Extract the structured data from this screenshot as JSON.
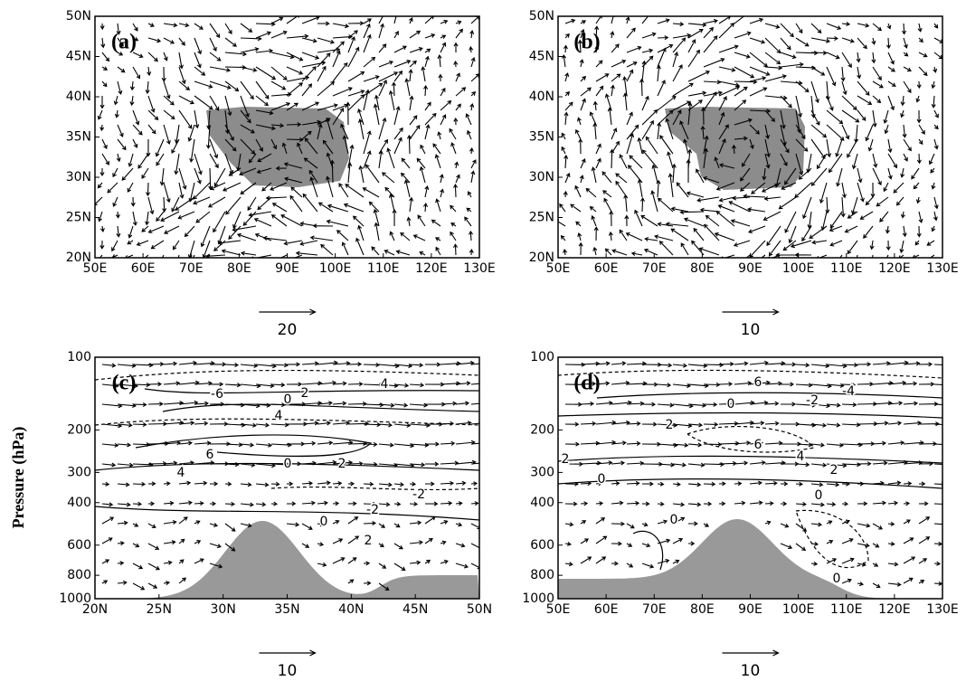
{
  "chart_data": [
    {
      "type": "vector",
      "panel_label": "(a)",
      "xlim": [
        50,
        130
      ],
      "ylim": [
        20,
        50
      ],
      "xticks": [
        {
          "value": 50,
          "label": "50E"
        },
        {
          "value": 60,
          "label": "60E"
        },
        {
          "value": 70,
          "label": "70E"
        },
        {
          "value": 80,
          "label": "80E"
        },
        {
          "value": 90,
          "label": "90E"
        },
        {
          "value": 100,
          "label": "100E"
        },
        {
          "value": 110,
          "label": "110E"
        },
        {
          "value": 120,
          "label": "120E"
        },
        {
          "value": 130,
          "label": "130E"
        }
      ],
      "yticks": [
        {
          "value": 20,
          "label": "20N"
        },
        {
          "value": 25,
          "label": "25N"
        },
        {
          "value": 30,
          "label": "30N"
        },
        {
          "value": 35,
          "label": "35N"
        },
        {
          "value": 40,
          "label": "40N"
        },
        {
          "value": 45,
          "label": "45N"
        },
        {
          "value": 50,
          "label": "50N"
        }
      ],
      "reference_vector": 20
    },
    {
      "type": "vector",
      "panel_label": "(b)",
      "xlim": [
        50,
        130
      ],
      "ylim": [
        20,
        50
      ],
      "xticks": [
        {
          "value": 50,
          "label": "50E"
        },
        {
          "value": 60,
          "label": "60E"
        },
        {
          "value": 70,
          "label": "70E"
        },
        {
          "value": 80,
          "label": "80E"
        },
        {
          "value": 90,
          "label": "90E"
        },
        {
          "value": 100,
          "label": "100E"
        },
        {
          "value": 110,
          "label": "110E"
        },
        {
          "value": 120,
          "label": "120E"
        },
        {
          "value": 130,
          "label": "130E"
        }
      ],
      "yticks": [
        {
          "value": 20,
          "label": "20N"
        },
        {
          "value": 25,
          "label": "25N"
        },
        {
          "value": 30,
          "label": "30N"
        },
        {
          "value": 35,
          "label": "35N"
        },
        {
          "value": 40,
          "label": "40N"
        },
        {
          "value": 45,
          "label": "45N"
        },
        {
          "value": 50,
          "label": "50N"
        }
      ],
      "reference_vector": 10
    },
    {
      "type": "section",
      "panel_label": "(c)",
      "ylabel": "Pressure (hPa)",
      "xlim": [
        20,
        50
      ],
      "ylim": [
        1000,
        100
      ],
      "log_y": true,
      "xticks": [
        {
          "value": 20,
          "label": "20N"
        },
        {
          "value": 25,
          "label": "25N"
        },
        {
          "value": 30,
          "label": "30N"
        },
        {
          "value": 35,
          "label": "35N"
        },
        {
          "value": 40,
          "label": "40N"
        },
        {
          "value": 45,
          "label": "45N"
        },
        {
          "value": 50,
          "label": "50N"
        }
      ],
      "yticks": [
        100,
        200,
        300,
        400,
        600,
        800,
        1000
      ],
      "reference_vector": 10,
      "contour_labels": [
        -6,
        0,
        2,
        4,
        4,
        6,
        4,
        0,
        2,
        -2,
        -2,
        0,
        2
      ]
    },
    {
      "type": "section",
      "panel_label": "(d)",
      "xlim": [
        50,
        130
      ],
      "ylim": [
        1000,
        100
      ],
      "log_y": true,
      "xticks": [
        {
          "value": 50,
          "label": "50E"
        },
        {
          "value": 60,
          "label": "60E"
        },
        {
          "value": 70,
          "label": "70E"
        },
        {
          "value": 80,
          "label": "80E"
        },
        {
          "value": 90,
          "label": "90E"
        },
        {
          "value": 100,
          "label": "100E"
        },
        {
          "value": 110,
          "label": "110E"
        },
        {
          "value": 120,
          "label": "120E"
        },
        {
          "value": 130,
          "label": "130E"
        }
      ],
      "yticks": [
        100,
        200,
        300,
        400,
        600,
        800,
        1000
      ],
      "reference_vector": 10,
      "contour_labels": [
        6,
        -4,
        0,
        -2,
        2,
        6,
        4,
        2,
        0,
        2,
        0,
        0,
        0
      ]
    }
  ]
}
